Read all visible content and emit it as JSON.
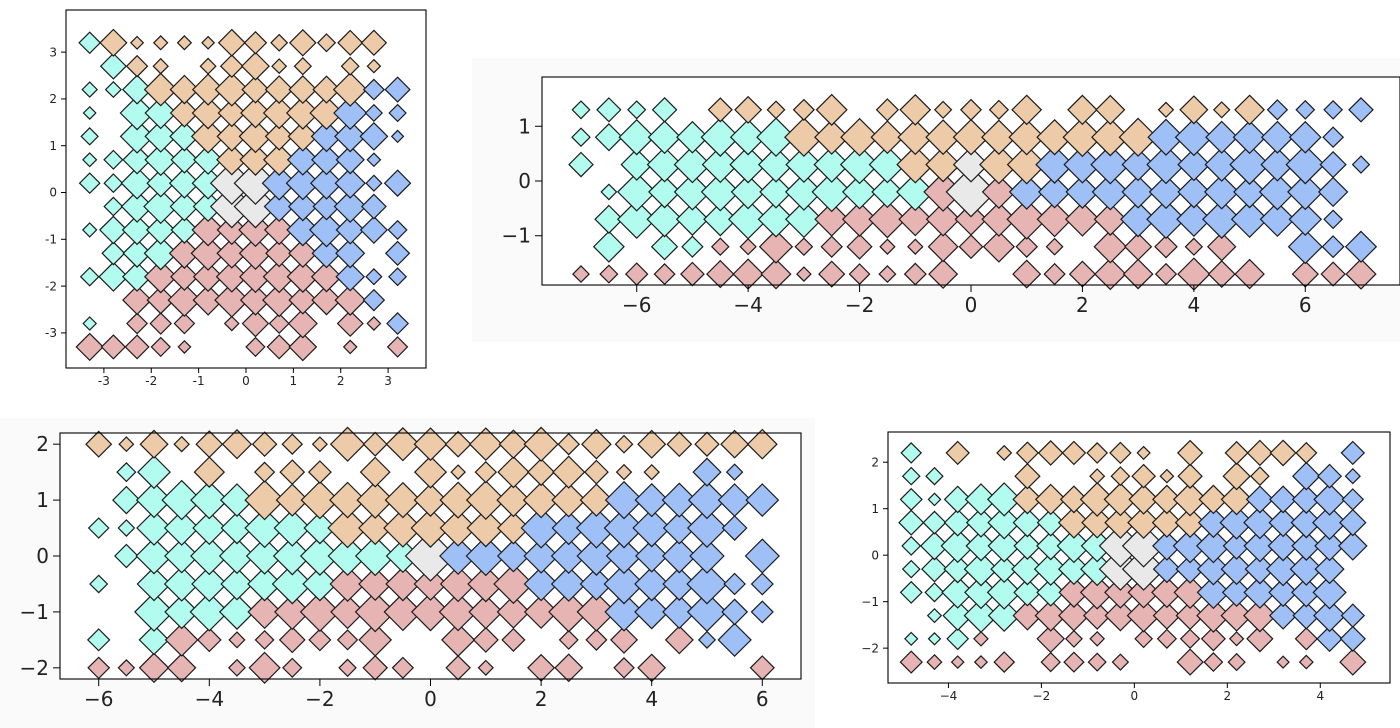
{
  "colors": {
    "left": "#b2fcef",
    "top": "#eecba8",
    "right": "#9fbff7",
    "bottom": "#e6b5b3",
    "center": "#e9e9e9",
    "outline": "#333333"
  },
  "chart_data": [
    {
      "type": "scatter",
      "marker": "diamond",
      "xlim": [
        -3.8,
        3.8
      ],
      "ylim": [
        -3.75,
        3.9
      ],
      "xticks": [
        "-3",
        "-2",
        "-1",
        "0",
        "1",
        "2",
        "3"
      ],
      "yticks": [
        "-3",
        "-2",
        "-1",
        "0",
        "1",
        "2",
        "3"
      ],
      "x_tick_values": [
        -3,
        -2,
        -1,
        0,
        1,
        2,
        3
      ],
      "y_tick_values": [
        -3,
        -2,
        -1,
        0,
        1,
        2,
        3
      ],
      "grid_spacing": 0.5,
      "x_extent": 3.3,
      "y_extent": 3.3,
      "title": "",
      "xlabel": "",
      "ylabel": ""
    },
    {
      "type": "scatter",
      "marker": "diamond",
      "xlim": [
        -7.7,
        7.7
      ],
      "ylim": [
        -1.9,
        1.9
      ],
      "xticks": [
        "−6",
        "−4",
        "−2",
        "0",
        "2",
        "4",
        "6"
      ],
      "yticks": [
        "−1",
        "0",
        "1"
      ],
      "x_tick_values": [
        -6,
        -4,
        -2,
        0,
        2,
        4,
        6
      ],
      "y_tick_values": [
        -1,
        0,
        1
      ],
      "grid_spacing": 0.5,
      "x_extent": 7.0,
      "y_extent": 1.7,
      "title": "",
      "xlabel": "",
      "ylabel": ""
    },
    {
      "type": "scatter",
      "marker": "diamond",
      "xlim": [
        -6.7,
        6.7
      ],
      "ylim": [
        -2.2,
        2.2
      ],
      "xticks": [
        "−6",
        "−4",
        "−2",
        "0",
        "2",
        "4",
        "6"
      ],
      "yticks": [
        "−2",
        "−1",
        "0",
        "1",
        "2"
      ],
      "x_tick_values": [
        -6,
        -4,
        -2,
        0,
        2,
        4,
        6
      ],
      "y_tick_values": [
        -2,
        -1,
        0,
        1,
        2
      ],
      "grid_spacing": 0.5,
      "x_extent": 6.0,
      "y_extent": 2.0,
      "title": "",
      "xlabel": "",
      "ylabel": ""
    },
    {
      "type": "scatter",
      "marker": "diamond",
      "xlim": [
        -5.3,
        5.5
      ],
      "ylim": [
        -2.75,
        2.65
      ],
      "xticks": [
        "−4",
        "−2",
        "0",
        "2",
        "4"
      ],
      "yticks": [
        "−2",
        "−1",
        "0",
        "1",
        "2"
      ],
      "x_tick_values": [
        -4,
        -2,
        0,
        2,
        4
      ],
      "y_tick_values": [
        -2,
        -1,
        0,
        1,
        2
      ],
      "grid_spacing": 0.5,
      "x_extent": 4.8,
      "y_extent": 2.3,
      "title": "",
      "xlabel": "",
      "ylabel": ""
    }
  ]
}
